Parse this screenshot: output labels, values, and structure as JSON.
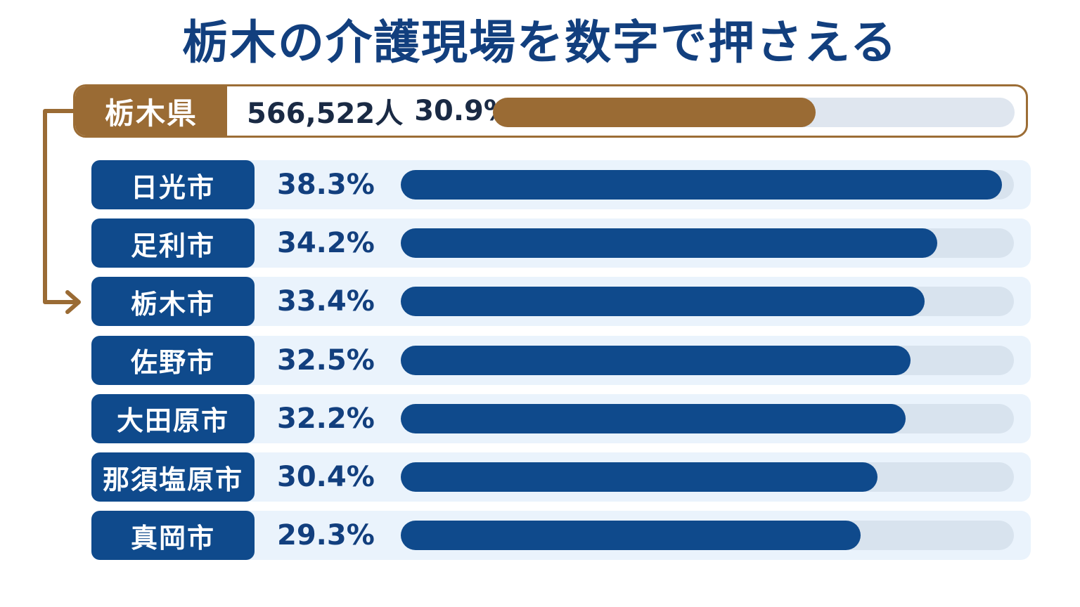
{
  "title": "栃木の介護現場を数字で押さえる",
  "colors": {
    "title": "#123f7e",
    "prefecture_accent": "#9a6b34",
    "city_accent": "#0f4a8c",
    "track": "#d8e3ee",
    "row_background": "#eaf3fc"
  },
  "icons": {
    "connector": "arrow-right-icon"
  },
  "chart_data": {
    "type": "bar",
    "title": "栃木の介護現場を数字で押さえる",
    "orientation": "horizontal",
    "xlim": [
      0,
      38.3
    ],
    "unit": "%",
    "prefecture": {
      "label": "栃木県",
      "population_text": "566,522人",
      "value": 30.9,
      "value_text": "30.9%"
    },
    "categories": [
      "日光市",
      "足利市",
      "栃木市",
      "佐野市",
      "大田原市",
      "那須塩原市",
      "真岡市"
    ],
    "values": [
      38.3,
      34.2,
      33.4,
      32.5,
      32.2,
      30.4,
      29.3
    ],
    "value_labels": [
      "38.3%",
      "34.2%",
      "33.4%",
      "32.5%",
      "32.2%",
      "30.4%",
      "29.3%"
    ],
    "highlight_category": "栃木市"
  }
}
